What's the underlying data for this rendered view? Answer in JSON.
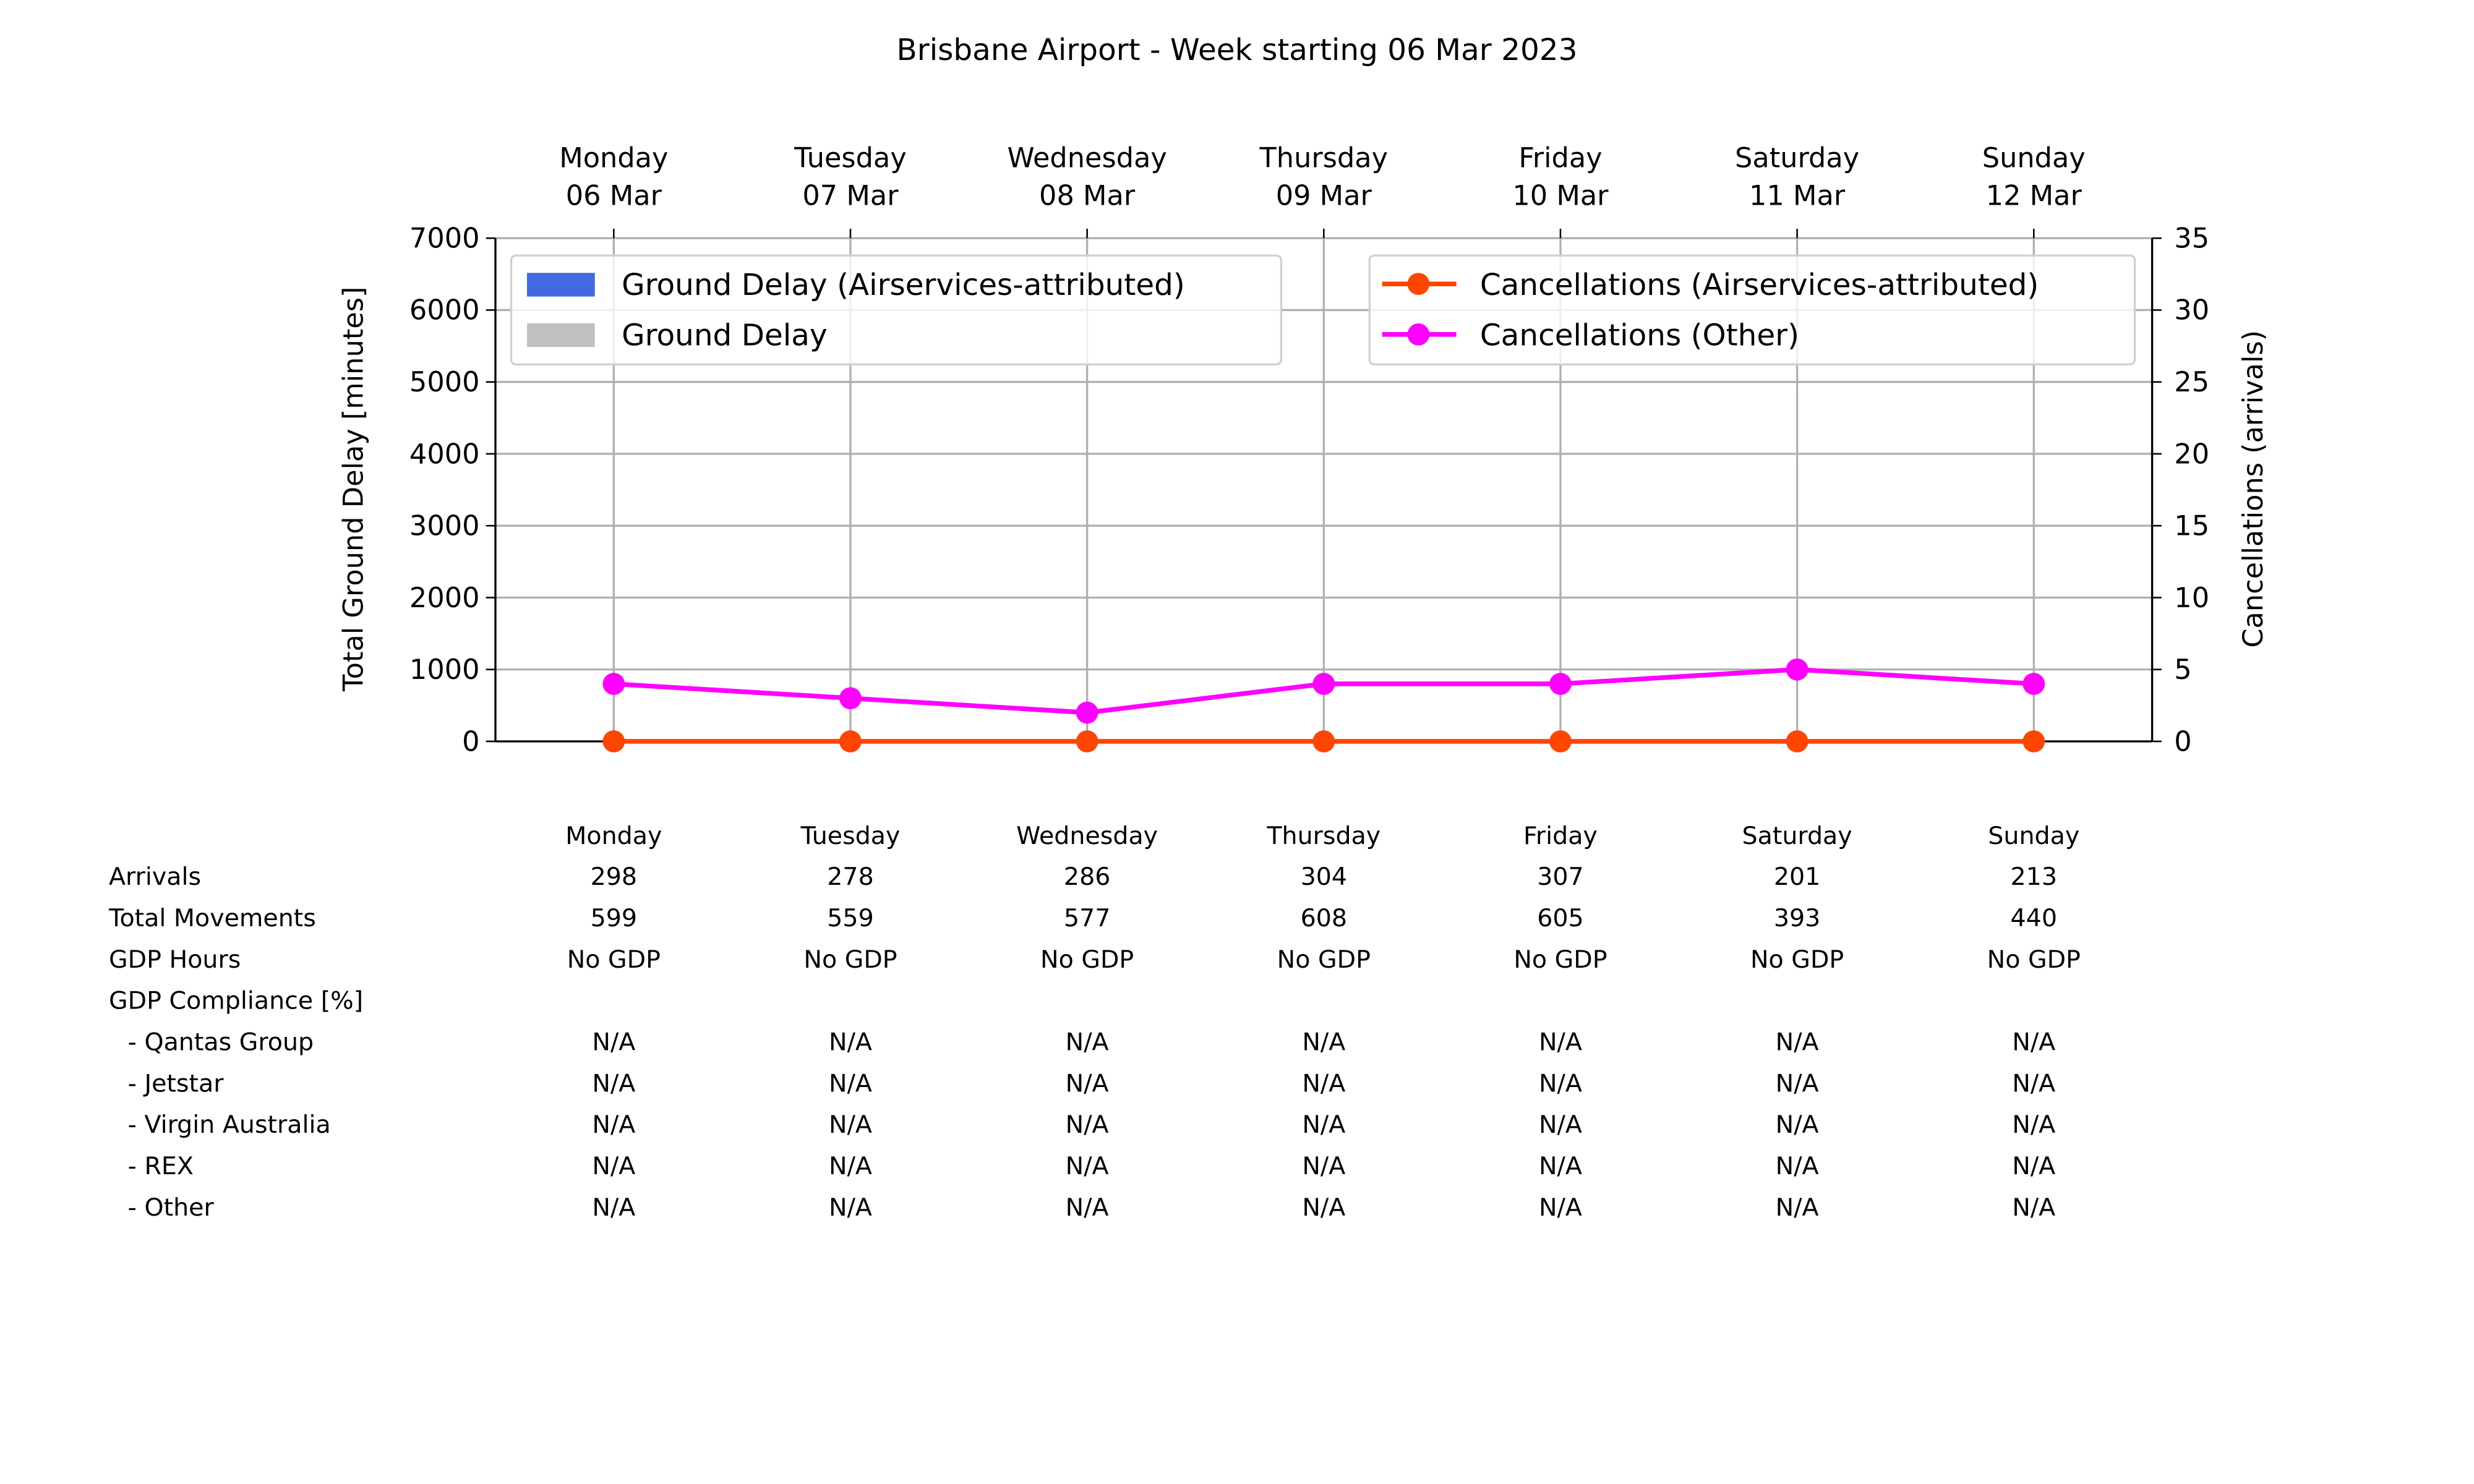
{
  "chart_data": {
    "type": "bar_line",
    "title": "Brisbane Airport - Week starting 06 Mar 2023",
    "categories": [
      [
        "Monday",
        "06 Mar"
      ],
      [
        "Tuesday",
        "07 Mar"
      ],
      [
        "Wednesday",
        "08 Mar"
      ],
      [
        "Thursday",
        "09 Mar"
      ],
      [
        "Friday",
        "10 Mar"
      ],
      [
        "Saturday",
        "11 Mar"
      ],
      [
        "Sunday",
        "12 Mar"
      ]
    ],
    "ylabel": "Total Ground Delay [minutes]",
    "y2label": "Cancellations (arrivals)",
    "ylim": [
      0,
      7000
    ],
    "yticks": [
      0,
      1000,
      2000,
      3000,
      4000,
      5000,
      6000,
      7000
    ],
    "y2lim": [
      0,
      35
    ],
    "y2ticks": [
      0,
      5,
      10,
      15,
      20,
      25,
      30,
      35
    ],
    "grid": true,
    "legend": "upper left",
    "legend2": "upper right",
    "series": [
      {
        "name": "Ground Delay (Airservices-attributed)",
        "type": "bar",
        "color": "#4169e1",
        "values": [
          0,
          0,
          0,
          0,
          0,
          0,
          0
        ]
      },
      {
        "name": "Ground Delay",
        "type": "bar",
        "color": "#c0c0c0",
        "values": [
          0,
          0,
          0,
          0,
          0,
          0,
          0
        ]
      },
      {
        "name": "Cancellations (Airservices-attributed)",
        "type": "line",
        "axis": "y2",
        "color": "#ff4500",
        "values": [
          0,
          0,
          0,
          0,
          0,
          0,
          0
        ]
      },
      {
        "name": "Cancellations (Other)",
        "type": "line",
        "axis": "y2",
        "color": "#ff00ff",
        "values": [
          4,
          3,
          2,
          4,
          4,
          5,
          4
        ]
      }
    ]
  },
  "table": {
    "columns": [
      "Monday",
      "Tuesday",
      "Wednesday",
      "Thursday",
      "Friday",
      "Saturday",
      "Sunday"
    ],
    "rows": [
      {
        "label": "Arrivals",
        "cells": [
          298,
          278,
          286,
          304,
          307,
          201,
          213
        ]
      },
      {
        "label": "Total Movements",
        "cells": [
          599,
          559,
          577,
          608,
          605,
          393,
          440
        ]
      },
      {
        "label": "GDP Hours",
        "cells": [
          "No GDP",
          "No GDP",
          "No GDP",
          "No GDP",
          "No GDP",
          "No GDP",
          "No GDP"
        ]
      },
      {
        "label": "GDP Compliance [%]",
        "cells": []
      },
      {
        "label": "- Qantas Group",
        "cells": [
          "N/A",
          "N/A",
          "N/A",
          "N/A",
          "N/A",
          "N/A",
          "N/A"
        ]
      },
      {
        "label": "- Jetstar",
        "cells": [
          "N/A",
          "N/A",
          "N/A",
          "N/A",
          "N/A",
          "N/A",
          "N/A"
        ]
      },
      {
        "label": "- Virgin Australia",
        "cells": [
          "N/A",
          "N/A",
          "N/A",
          "N/A",
          "N/A",
          "N/A",
          "N/A"
        ]
      },
      {
        "label": "- REX",
        "cells": [
          "N/A",
          "N/A",
          "N/A",
          "N/A",
          "N/A",
          "N/A",
          "N/A"
        ]
      },
      {
        "label": "- Other",
        "cells": [
          "N/A",
          "N/A",
          "N/A",
          "N/A",
          "N/A",
          "N/A",
          "N/A"
        ]
      }
    ]
  }
}
